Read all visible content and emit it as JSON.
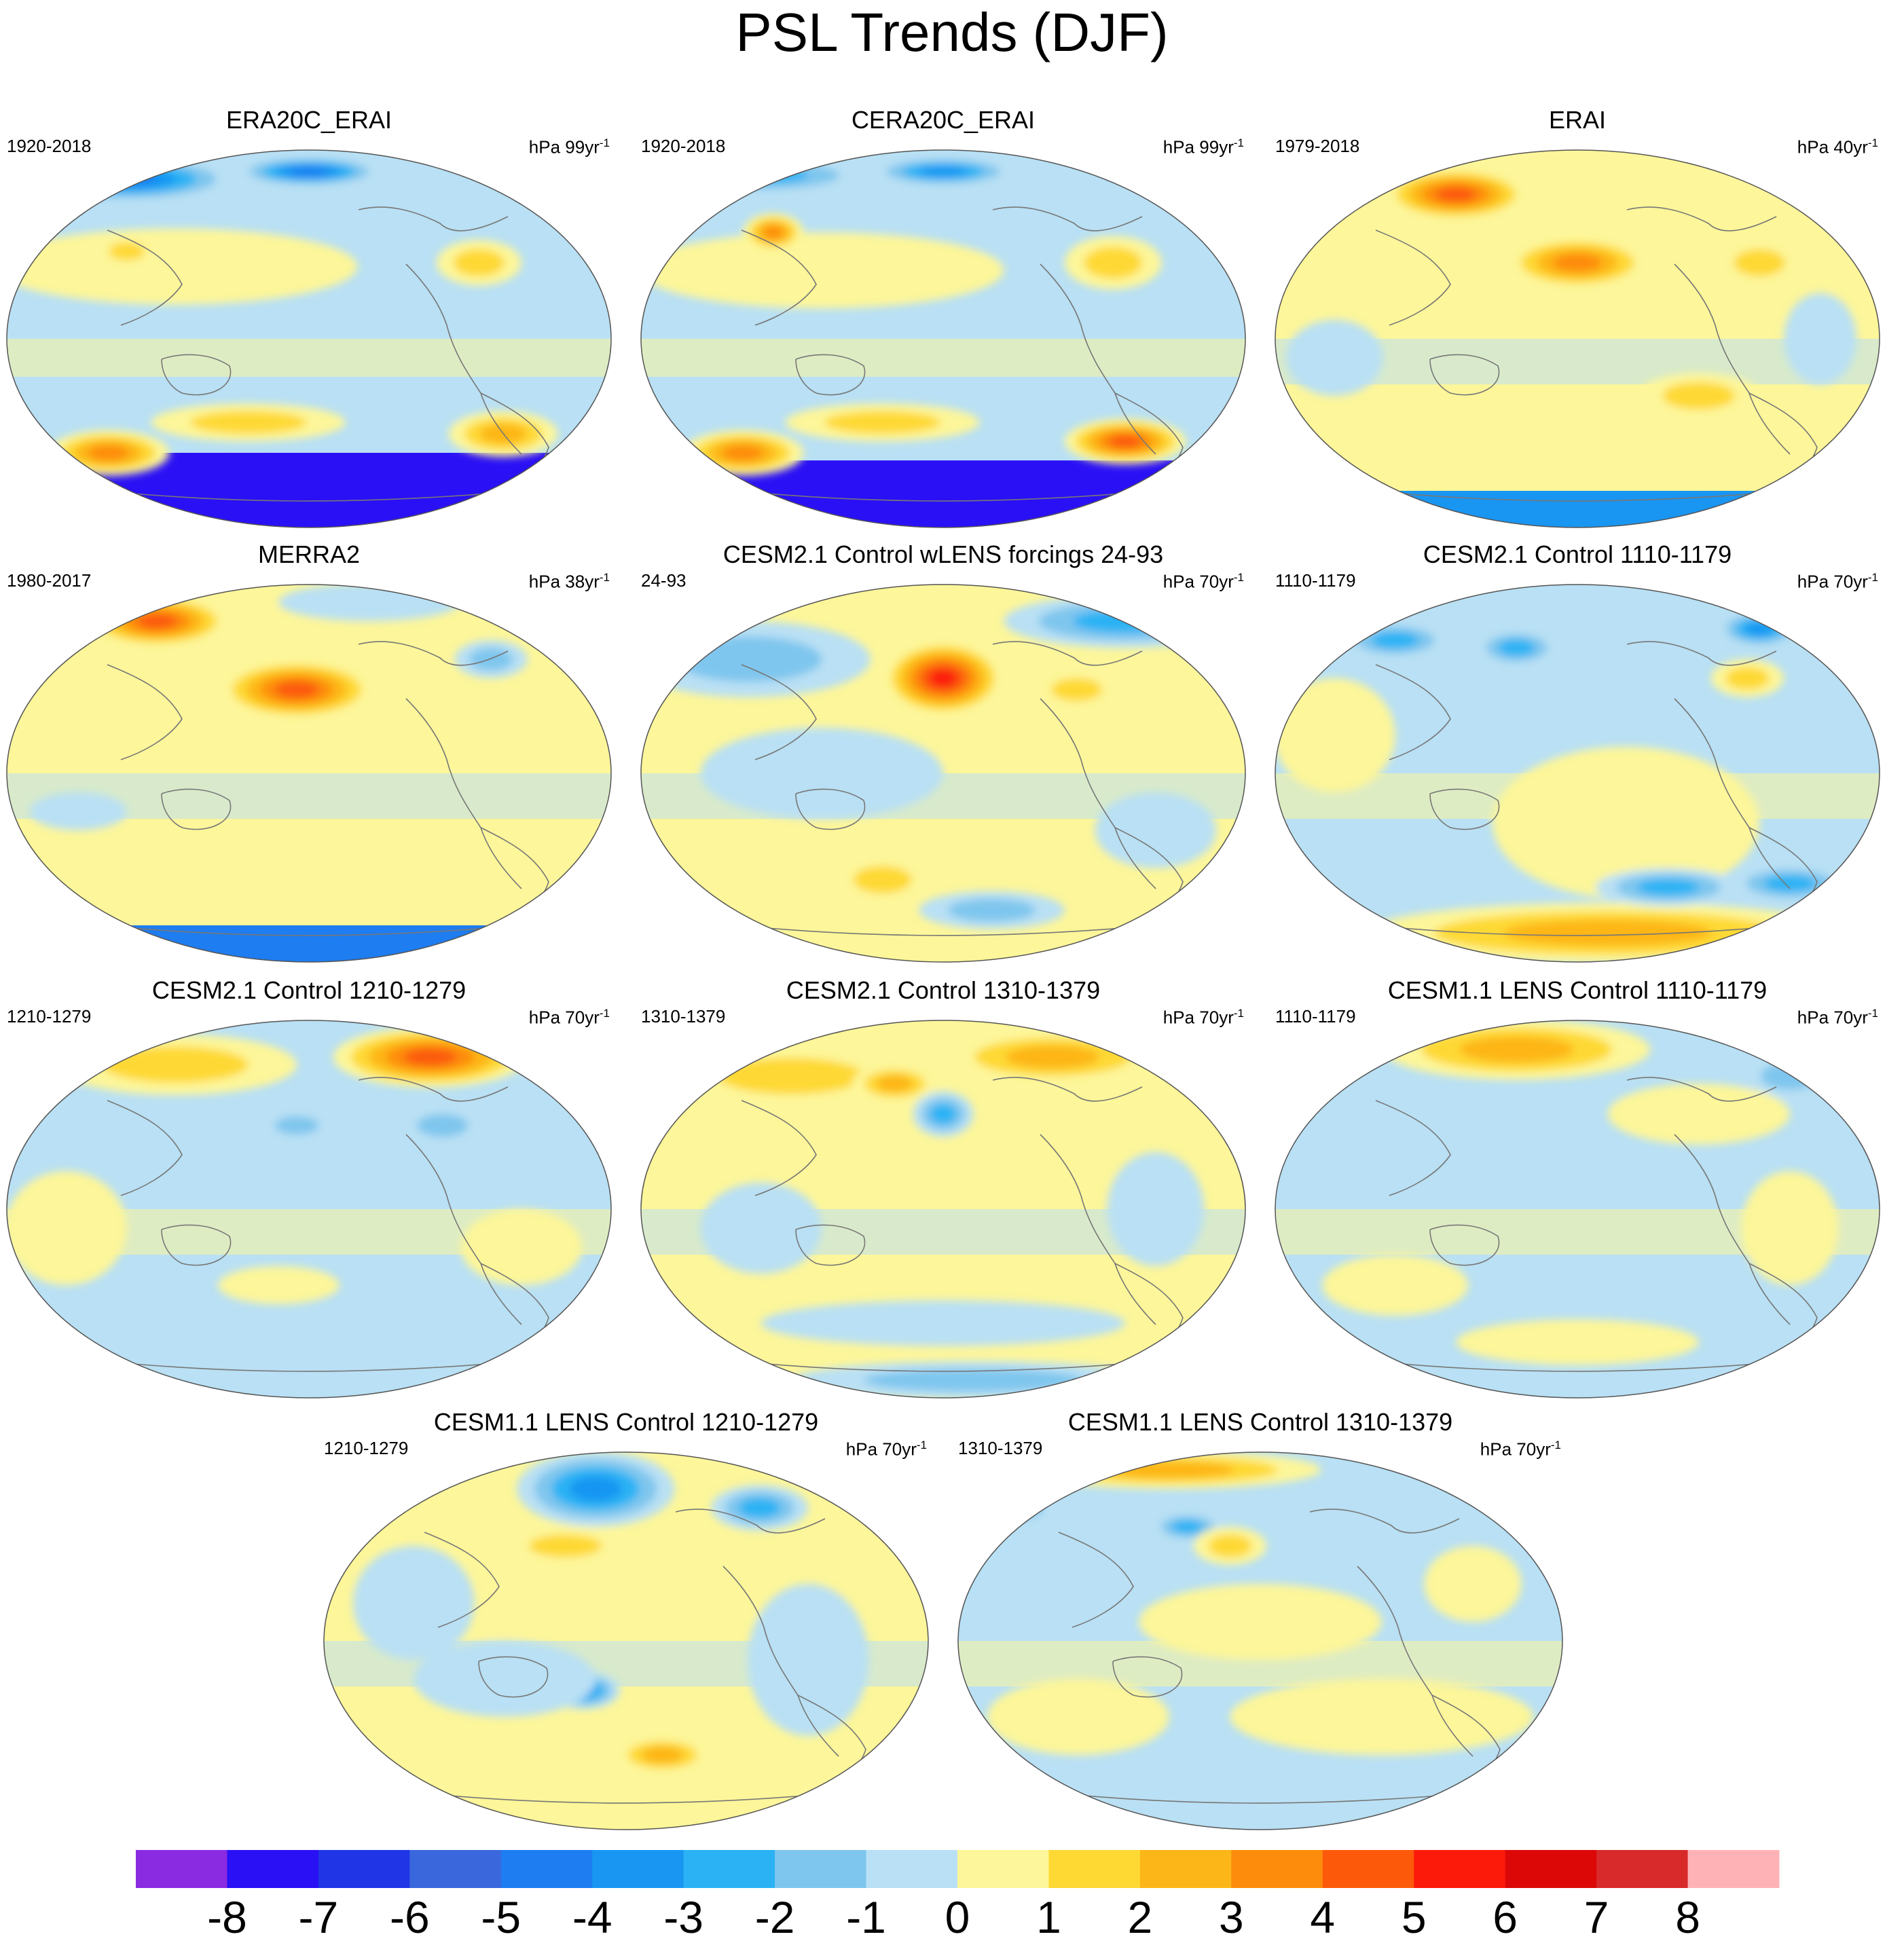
{
  "figure_title": "PSL Trends (DJF)",
  "chart_data": {
    "type": "contour-map-panels",
    "title": "PSL Trends (DJF)",
    "variable": "PSL",
    "season": "DJF",
    "projection": "Robinson (centered on Pacific)",
    "units_base": "hPa",
    "panels": [
      {
        "title": "ERA20C_ERAI",
        "period": "1920-2018",
        "units": "hPa 99yr",
        "units_exp": "-1",
        "pattern": "era20c"
      },
      {
        "title": "CERA20C_ERAI",
        "period": "1920-2018",
        "units": "hPa 99yr",
        "units_exp": "-1",
        "pattern": "cera20c"
      },
      {
        "title": "ERAI",
        "period": "1979-2018",
        "units": "hPa 40yr",
        "units_exp": "-1",
        "pattern": "erai"
      },
      {
        "title": "MERRA2",
        "period": "1980-2017",
        "units": "hPa 38yr",
        "units_exp": "-1",
        "pattern": "merra2"
      },
      {
        "title": "CESM2.1 Control wLENS forcings 24-93",
        "period": "24-93",
        "units": "hPa 70yr",
        "units_exp": "-1",
        "pattern": "cesm2_wlens"
      },
      {
        "title": "CESM2.1 Control 1110-1179",
        "period": "1110-1179",
        "units": "hPa 70yr",
        "units_exp": "-1",
        "pattern": "cesm2_1110"
      },
      {
        "title": "CESM2.1 Control 1210-1279",
        "period": "1210-1279",
        "units": "hPa 70yr",
        "units_exp": "-1",
        "pattern": "cesm2_1210"
      },
      {
        "title": "CESM2.1 Control 1310-1379",
        "period": "1310-1379",
        "units": "hPa 70yr",
        "units_exp": "-1",
        "pattern": "cesm2_1310"
      },
      {
        "title": "CESM1.1 LENS Control 1110-1179",
        "period": "1110-1179",
        "units": "hPa 70yr",
        "units_exp": "-1",
        "pattern": "cesm1_1110"
      },
      {
        "title": "CESM1.1 LENS Control 1210-1279",
        "period": "1210-1279",
        "units": "hPa 70yr",
        "units_exp": "-1",
        "pattern": "cesm1_1210"
      },
      {
        "title": "CESM1.1 LENS Control 1310-1379",
        "period": "1310-1379",
        "units": "hPa 70yr",
        "units_exp": "-1",
        "pattern": "cesm1_1310"
      }
    ],
    "colorbar": {
      "levels": [
        -8,
        -7,
        -6,
        -5,
        -4,
        -3,
        -2,
        -1,
        0,
        1,
        2,
        3,
        4,
        5,
        6,
        7,
        8
      ],
      "labels": [
        "-8",
        "-7",
        "-6",
        "-5",
        "-4",
        "-3",
        "-2",
        "-1",
        "0",
        "1",
        "2",
        "3",
        "4",
        "5",
        "6",
        "7",
        "8"
      ],
      "colors": [
        "#8a2be2",
        "#2a10f5",
        "#2035e6",
        "#3a68dc",
        "#1e7df0",
        "#1996f2",
        "#2bb2f4",
        "#7fc6ee",
        "#b9e0f4",
        "#fdf69a",
        "#fed934",
        "#fdb618",
        "#fd8c0c",
        "#fc5a0a",
        "#fc1a0a",
        "#dc0808",
        "#d82a2a",
        "#ffb2b6"
      ]
    }
  }
}
